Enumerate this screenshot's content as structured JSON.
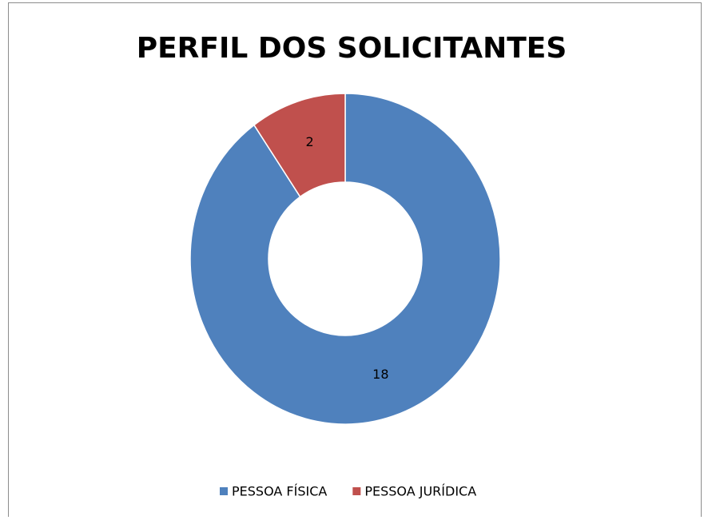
{
  "chart_data": {
    "type": "pie",
    "title": "PERFIL DOS SOLICITANTES",
    "categories": [
      "PESSOA FÍSICA",
      "PESSOA JURÍDICA"
    ],
    "values": [
      18,
      2
    ],
    "colors": [
      "#4f81bd",
      "#c0504d"
    ],
    "donut": true,
    "legend": "bottom"
  }
}
